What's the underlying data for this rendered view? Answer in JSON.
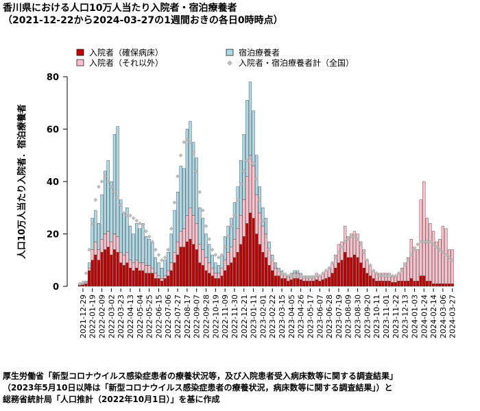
{
  "chart_data": {
    "type": "bar",
    "stacked": true,
    "title": "香川県における人口10万人当たり入院者・宿泊療養者",
    "subtitle": "（2021-12-22から2024-03-27の1週間おきの各日0時時点）",
    "y_label": "人口10万人当たり入院者．宿泊療養者",
    "source": [
      "厚生労働省「新型コロナウイルス感染症患者の療養状況等，及び入院患者受入病床数等に関する調査結果」",
      "（2023年5月10日以降は「新型コロナウイルス感染症患者の療養状況，病床数等に関する調査結果」）と",
      "総務省統計局「人口推計（2022年10月1日）」を基に作成"
    ],
    "ylim": [
      0,
      80
    ],
    "yticks": [
      0,
      20,
      40,
      60,
      80
    ],
    "categories": [
      null,
      "2021-12-29",
      null,
      null,
      "2022-01-19",
      null,
      null,
      "2022-02-09",
      null,
      null,
      "2022-03-02",
      null,
      null,
      "2022-03-23",
      null,
      null,
      "2022-04-13",
      null,
      null,
      "2022-05-04",
      null,
      null,
      "2022-05-25",
      null,
      null,
      "2022-06-15",
      null,
      null,
      "2022-07-06",
      null,
      null,
      "2022-07-27",
      null,
      null,
      "2022-08-17",
      null,
      null,
      "2022-09-07",
      null,
      null,
      "2022-09-28",
      null,
      null,
      "2022-10-19",
      null,
      null,
      "2022-11-09",
      null,
      null,
      "2022-11-30",
      null,
      null,
      "2022-12-21",
      null,
      null,
      "2023-01-11",
      null,
      null,
      "2023-02-01",
      null,
      null,
      "2023-02-22",
      null,
      null,
      "2023-03-15",
      null,
      null,
      "2023-04-05",
      null,
      null,
      "2023-04-26",
      null,
      null,
      "2023-05-17",
      null,
      null,
      "2023-06-07",
      null,
      null,
      "2023-06-28",
      null,
      null,
      "2023-07-19",
      null,
      null,
      "2023-08-09",
      null,
      null,
      "2023-08-30",
      null,
      null,
      "2023-09-20",
      null,
      null,
      "2023-10-11",
      null,
      null,
      "2023-11-01",
      null,
      null,
      "2023-11-22",
      null,
      null,
      "2023-12-13",
      null,
      null,
      "2024-01-03",
      null,
      null,
      "2024-01-24",
      null,
      null,
      "2024-02-14",
      null,
      null,
      "2024-03-06",
      null,
      null,
      "2024-03-27"
    ],
    "series": [
      {
        "name": "入院者（確保病床）",
        "color": "#c00000",
        "values": [
          0.5,
          0.5,
          1,
          6,
          10,
          12,
          10,
          13,
          14,
          15,
          12,
          14,
          13,
          9,
          8,
          9,
          7,
          6,
          7,
          6,
          6,
          5,
          5,
          5,
          3,
          3,
          2,
          3,
          4,
          6,
          9,
          12,
          15,
          15,
          17,
          18,
          16,
          14,
          9,
          8,
          6,
          5,
          4,
          3,
          3,
          4,
          6,
          8,
          9,
          11,
          13,
          16,
          19,
          24,
          28,
          26,
          20,
          16,
          13,
          11,
          8,
          6,
          4,
          4,
          3,
          3,
          2,
          2.5,
          3,
          3,
          2.5,
          2,
          2,
          2,
          2,
          2.5,
          2,
          2.5,
          3,
          3.5,
          5,
          7,
          9,
          10,
          13,
          11,
          11,
          12,
          11,
          9,
          7,
          5,
          4,
          3,
          2,
          2,
          2,
          2,
          2,
          1.5,
          1.5,
          2,
          2,
          2,
          2,
          3,
          2,
          2,
          4,
          4,
          2,
          2,
          1,
          1,
          1,
          1,
          1,
          1,
          1
        ]
      },
      {
        "name": "入院者（それ以外）",
        "color": "#ffc0cb",
        "values": [
          0.3,
          0.3,
          0.5,
          1,
          4,
          5,
          4,
          5,
          6,
          6,
          5,
          6,
          6,
          4,
          4,
          4,
          3,
          3,
          3,
          3,
          3,
          3,
          3,
          2,
          2,
          1,
          1,
          1,
          2,
          3,
          4,
          5,
          6,
          7,
          10,
          12,
          11,
          10,
          7,
          6,
          5,
          4,
          3,
          2,
          2,
          3,
          4,
          5,
          6,
          7,
          9,
          11,
          14,
          18,
          22,
          20,
          15,
          12,
          10,
          9,
          6,
          4,
          3,
          2,
          2,
          1.5,
          1.5,
          1.5,
          2,
          2,
          2,
          1.5,
          1.5,
          2,
          2,
          2.5,
          2,
          2.5,
          3,
          3.5,
          4,
          5,
          7,
          7,
          10,
          8,
          9,
          9,
          9,
          8,
          7,
          5,
          4,
          3,
          3,
          3,
          3,
          3,
          3,
          2.5,
          2.5,
          3,
          5,
          7,
          9,
          15,
          13,
          12,
          29,
          36,
          24,
          22,
          20,
          16,
          17,
          22,
          21,
          13,
          13
        ]
      },
      {
        "name": "宿泊療養者",
        "color": "#add8e6",
        "values": [
          0.2,
          0.3,
          0.5,
          2,
          12,
          12,
          10,
          17,
          24,
          27,
          23,
          38,
          42,
          20,
          16,
          17,
          13,
          11,
          14,
          13,
          15,
          11,
          10,
          10,
          6,
          5,
          4,
          6,
          7,
          11,
          16,
          19,
          25,
          23,
          33,
          33,
          28,
          25,
          14,
          12,
          9,
          7,
          5,
          4,
          3,
          5,
          9,
          10,
          11,
          14,
          16,
          21,
          25,
          29,
          28,
          21,
          15,
          10,
          7,
          6,
          3,
          2,
          2,
          1,
          1,
          0.5,
          0.5,
          1,
          1,
          1,
          0.5,
          0.5,
          0.5,
          0,
          0,
          0,
          0,
          0,
          0,
          0,
          0,
          0,
          0,
          0,
          0,
          0,
          0,
          0,
          0,
          0,
          0,
          0,
          0,
          0,
          0,
          0,
          0,
          0,
          0,
          0,
          0,
          0,
          0,
          0,
          0,
          0,
          0,
          0,
          0,
          0,
          0,
          0,
          0,
          0,
          0,
          0,
          0,
          0,
          0
        ]
      },
      {
        "name": "入院者・宿泊療養者計（全国）",
        "type": "scatter",
        "color": "#bbbbbb",
        "values": [
          1,
          1.5,
          5,
          14,
          24,
          33,
          38,
          40,
          42,
          40,
          38,
          36,
          34,
          31,
          28,
          27,
          27,
          26,
          25,
          24,
          23,
          21,
          19,
          17,
          14,
          12,
          10,
          11,
          14,
          22,
          32,
          42,
          50,
          55,
          56,
          55,
          51,
          44,
          36,
          29,
          23,
          18,
          14,
          12,
          11,
          12,
          15,
          19,
          23,
          27,
          33,
          39,
          44,
          48,
          49,
          47,
          41,
          33,
          25,
          19,
          14,
          10,
          8,
          6,
          5,
          4.5,
          4,
          4,
          4,
          4,
          4,
          3.5,
          3.5,
          3.5,
          3.5,
          4,
          4,
          5,
          6,
          7,
          9,
          11,
          13,
          15,
          17,
          18,
          19,
          19,
          18,
          16,
          13,
          10,
          8,
          6,
          5,
          4,
          4,
          4,
          4,
          4,
          4,
          5,
          6,
          8,
          10,
          12,
          14,
          16,
          17,
          17,
          17,
          17,
          16,
          15,
          14,
          13,
          12,
          11,
          10
        ]
      }
    ]
  }
}
